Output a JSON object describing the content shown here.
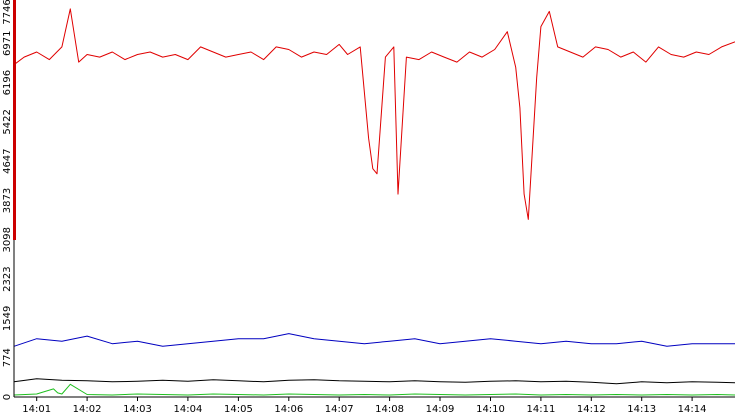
{
  "chart_data": {
    "type": "line",
    "title": "",
    "xlabel": "",
    "ylabel": "",
    "xlim": [
      "14:00:33",
      "14:14:51"
    ],
    "ylim": [
      0,
      7746
    ],
    "grid": false,
    "y_ticks": [
      "0",
      "774",
      "1549",
      "2323",
      "3098",
      "3873",
      "4647",
      "5422",
      "6196",
      "6971",
      "7746"
    ],
    "x_ticks": [
      "14:01",
      "14:02",
      "14:03",
      "14:04",
      "14:05",
      "14:06",
      "14:07",
      "14:08",
      "14:09",
      "14:10",
      "14:11",
      "14:12",
      "14:13",
      "14:14"
    ],
    "series": [
      {
        "color": "#e00000",
        "x": [
          "14:00:33",
          "14:00:45",
          "14:01:00",
          "14:01:15",
          "14:01:30",
          "14:01:40",
          "14:01:50",
          "14:02:00",
          "14:02:15",
          "14:02:30",
          "14:02:45",
          "14:03:00",
          "14:03:15",
          "14:03:30",
          "14:03:45",
          "14:04:00",
          "14:04:15",
          "14:04:30",
          "14:04:45",
          "14:05:00",
          "14:05:15",
          "14:05:30",
          "14:05:45",
          "14:06:00",
          "14:06:15",
          "14:06:30",
          "14:06:45",
          "14:07:00",
          "14:07:10",
          "14:07:25",
          "14:07:35",
          "14:07:40",
          "14:07:45",
          "14:07:55",
          "14:08:05",
          "14:08:10",
          "14:08:20",
          "14:08:35",
          "14:08:50",
          "14:09:05",
          "14:09:20",
          "14:09:35",
          "14:09:50",
          "14:10:05",
          "14:10:20",
          "14:10:30",
          "14:10:35",
          "14:10:40",
          "14:10:45",
          "14:10:55",
          "14:11:00",
          "14:11:10",
          "14:11:20",
          "14:11:35",
          "14:11:50",
          "14:12:05",
          "14:12:20",
          "14:12:35",
          "14:12:50",
          "14:13:05",
          "14:13:20",
          "14:13:35",
          "14:13:50",
          "14:14:05",
          "14:14:20",
          "14:14:35",
          "14:14:51"
        ],
        "values": [
          6550,
          6700,
          6800,
          6650,
          6900,
          7650,
          6600,
          6750,
          6700,
          6800,
          6650,
          6750,
          6800,
          6700,
          6750,
          6650,
          6900,
          6800,
          6700,
          6750,
          6800,
          6650,
          6900,
          6850,
          6700,
          6800,
          6750,
          6950,
          6750,
          6900,
          5100,
          4500,
          4400,
          6700,
          6900,
          4000,
          6700,
          6650,
          6800,
          6700,
          6600,
          6800,
          6700,
          6850,
          7200,
          6500,
          5700,
          4000,
          3500,
          6300,
          7300,
          7600,
          6900,
          6800,
          6700,
          6900,
          6850,
          6700,
          6800,
          6600,
          6900,
          6750,
          6700,
          6800,
          6750,
          6900,
          7000
        ]
      },
      {
        "color": "#0000c0",
        "x": [
          "14:00:33",
          "14:01:00",
          "14:01:30",
          "14:02:00",
          "14:02:30",
          "14:03:00",
          "14:03:30",
          "14:04:00",
          "14:04:30",
          "14:05:00",
          "14:05:30",
          "14:06:00",
          "14:06:30",
          "14:07:00",
          "14:07:30",
          "14:08:00",
          "14:08:30",
          "14:09:00",
          "14:09:30",
          "14:10:00",
          "14:10:30",
          "14:11:00",
          "14:11:30",
          "14:12:00",
          "14:12:30",
          "14:13:00",
          "14:13:30",
          "14:14:00",
          "14:14:30",
          "14:14:51"
        ],
        "values": [
          1000,
          1150,
          1100,
          1200,
          1050,
          1100,
          1000,
          1050,
          1100,
          1150,
          1150,
          1250,
          1150,
          1100,
          1050,
          1100,
          1150,
          1050,
          1100,
          1150,
          1100,
          1050,
          1100,
          1050,
          1050,
          1100,
          1000,
          1050,
          1050,
          1050
        ]
      },
      {
        "color": "#000000",
        "x": [
          "14:00:33",
          "14:01:00",
          "14:01:30",
          "14:02:00",
          "14:02:30",
          "14:03:00",
          "14:03:30",
          "14:04:00",
          "14:04:30",
          "14:05:00",
          "14:05:30",
          "14:06:00",
          "14:06:30",
          "14:07:00",
          "14:07:30",
          "14:08:00",
          "14:08:30",
          "14:09:00",
          "14:09:30",
          "14:10:00",
          "14:10:30",
          "14:11:00",
          "14:11:30",
          "14:12:00",
          "14:12:30",
          "14:13:00",
          "14:13:30",
          "14:14:00",
          "14:14:30",
          "14:14:51"
        ],
        "values": [
          300,
          360,
          330,
          320,
          300,
          310,
          330,
          310,
          340,
          320,
          300,
          330,
          340,
          320,
          310,
          300,
          320,
          300,
          290,
          310,
          320,
          300,
          310,
          290,
          260,
          300,
          280,
          300,
          290,
          280
        ]
      },
      {
        "color": "#20c020",
        "x": [
          "14:00:33",
          "14:01:00",
          "14:01:20",
          "14:01:25",
          "14:01:30",
          "14:01:40",
          "14:02:00",
          "14:02:30",
          "14:03:00",
          "14:03:30",
          "14:04:00",
          "14:04:30",
          "14:05:00",
          "14:05:30",
          "14:06:00",
          "14:06:30",
          "14:07:00",
          "14:07:30",
          "14:08:00",
          "14:08:30",
          "14:09:00",
          "14:09:30",
          "14:10:00",
          "14:10:30",
          "14:11:00",
          "14:11:30",
          "14:12:00",
          "14:12:30",
          "14:13:00",
          "14:13:30",
          "14:14:00",
          "14:14:30",
          "14:14:51"
        ],
        "values": [
          40,
          60,
          160,
          80,
          60,
          250,
          50,
          40,
          60,
          50,
          40,
          60,
          50,
          40,
          60,
          50,
          40,
          50,
          40,
          60,
          50,
          40,
          50,
          60,
          40,
          50,
          40,
          50,
          40,
          50,
          40,
          50,
          40
        ]
      }
    ]
  }
}
